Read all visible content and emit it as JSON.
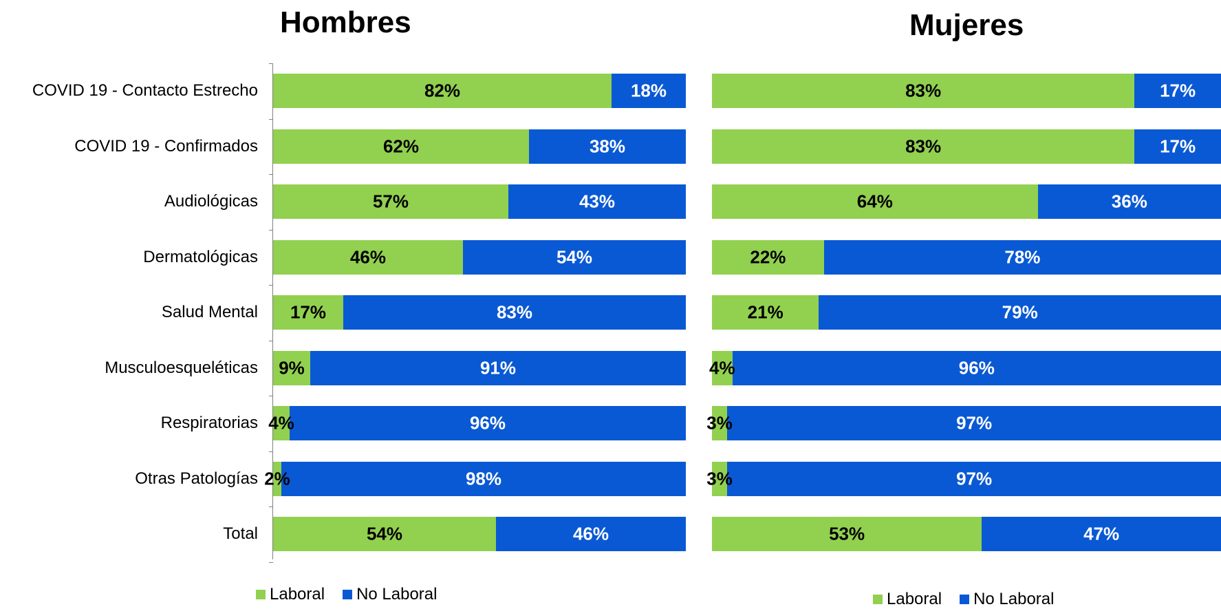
{
  "colors": {
    "laboral": "#92d050",
    "no_laboral": "#0a59d4",
    "label_laboral": "#000000",
    "label_no_laboral": "#ffffff"
  },
  "legend_left": {
    "laboral": "Laboral",
    "no_laboral": "No Laboral"
  },
  "legend_right": {
    "laboral": "Laboral",
    "no_laboral": "No  Laboral"
  },
  "chart_data": [
    {
      "type": "bar",
      "orientation": "horizontal",
      "stacked": "percent",
      "title": "Hombres",
      "categories": [
        "COVID 19 - Contacto Estrecho",
        "COVID 19 - Confirmados",
        "Audiológicas",
        "Dermatológicas",
        "Salud Mental",
        "Musculoesqueléticas",
        "Respiratorias",
        "Otras Patologías",
        "Total"
      ],
      "series": [
        {
          "name": "Laboral",
          "values": [
            82,
            62,
            57,
            46,
            17,
            9,
            4,
            2,
            54
          ]
        },
        {
          "name": "No Laboral",
          "values": [
            18,
            38,
            43,
            54,
            83,
            91,
            96,
            98,
            46
          ]
        }
      ],
      "xlim": [
        0,
        100
      ],
      "legend": "bottom"
    },
    {
      "type": "bar",
      "orientation": "horizontal",
      "stacked": "percent",
      "title": "Mujeres",
      "categories": [
        "COVID 19 - Contacto Estrecho",
        "COVID 19 - Confirmados",
        "Audiológicas",
        "Dermatológicas",
        "Salud Mental",
        "Musculoesqueléticas",
        "Respiratorias",
        "Otras Patologías",
        "Total"
      ],
      "series": [
        {
          "name": "Laboral",
          "values": [
            83,
            83,
            64,
            22,
            21,
            4,
            3,
            3,
            53
          ]
        },
        {
          "name": "No  Laboral",
          "values": [
            17,
            17,
            36,
            78,
            79,
            96,
            97,
            97,
            47
          ]
        }
      ],
      "xlim": [
        0,
        100
      ],
      "legend": "bottom"
    }
  ]
}
